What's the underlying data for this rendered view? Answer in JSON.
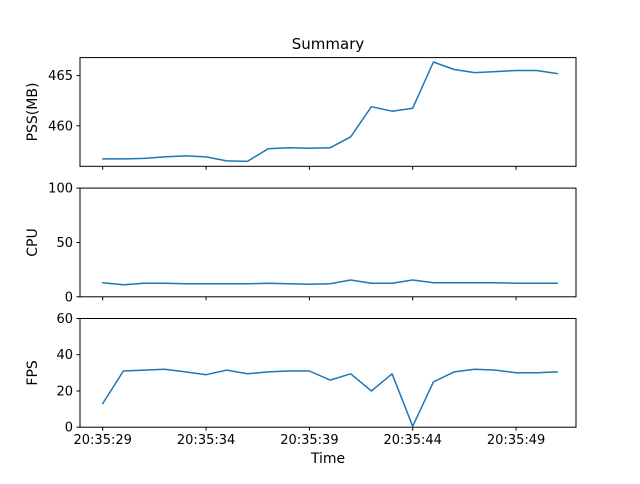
{
  "figure": {
    "background": "#ffffff"
  },
  "chart_data": {
    "type": "line",
    "title": "Summary",
    "xlabel": "Time",
    "line_color": "#1f77b4",
    "legend": "none",
    "grid": false,
    "x_tick_labels": [
      "20:35:29",
      "20:35:34",
      "20:35:39",
      "20:35:44",
      "20:35:49"
    ],
    "x_tick_seconds": [
      29,
      34,
      39,
      44,
      49
    ],
    "xlim_seconds": [
      27.9,
      51.9
    ],
    "x_seconds": [
      29,
      30,
      31,
      32,
      33,
      34,
      35,
      36,
      37,
      38,
      39,
      40,
      41,
      42,
      43,
      44,
      45,
      46,
      47,
      48,
      49,
      50,
      51
    ],
    "subplots": [
      {
        "id": "pss",
        "ylabel": "PSS(MB)",
        "ylim": [
          455.96,
          466.79
        ],
        "yticks": [
          460,
          465
        ],
        "ytick_labels": [
          "460",
          "465"
        ],
        "values": [
          456.7,
          456.7,
          456.75,
          456.9,
          457.0,
          456.9,
          456.5,
          456.45,
          457.7,
          457.8,
          457.75,
          457.8,
          458.9,
          461.9,
          461.45,
          461.75,
          466.35,
          465.6,
          465.3,
          465.4,
          465.5,
          465.5,
          465.2
        ]
      },
      {
        "id": "cpu",
        "ylabel": "CPU",
        "ylim": [
          0,
          100
        ],
        "yticks": [
          0,
          50,
          100
        ],
        "ytick_labels": [
          "0",
          "50",
          "100"
        ],
        "values": [
          13,
          11,
          12.5,
          12.5,
          12,
          12,
          12,
          12,
          12.5,
          12,
          11.5,
          12,
          15.5,
          12.5,
          12.5,
          15.5,
          13,
          13,
          13,
          13,
          12.5,
          12.5,
          12.5
        ]
      },
      {
        "id": "fps",
        "ylabel": "FPS",
        "ylim": [
          0,
          60
        ],
        "yticks": [
          0,
          20,
          40,
          60
        ],
        "ytick_labels": [
          "0",
          "20",
          "40",
          "60"
        ],
        "values": [
          13,
          31,
          31.5,
          32,
          30.5,
          29,
          31.5,
          29.5,
          30.5,
          31,
          31,
          26,
          29.5,
          20,
          29.5,
          0.5,
          25,
          30.5,
          32,
          31.5,
          30,
          30,
          30.5
        ]
      }
    ]
  }
}
